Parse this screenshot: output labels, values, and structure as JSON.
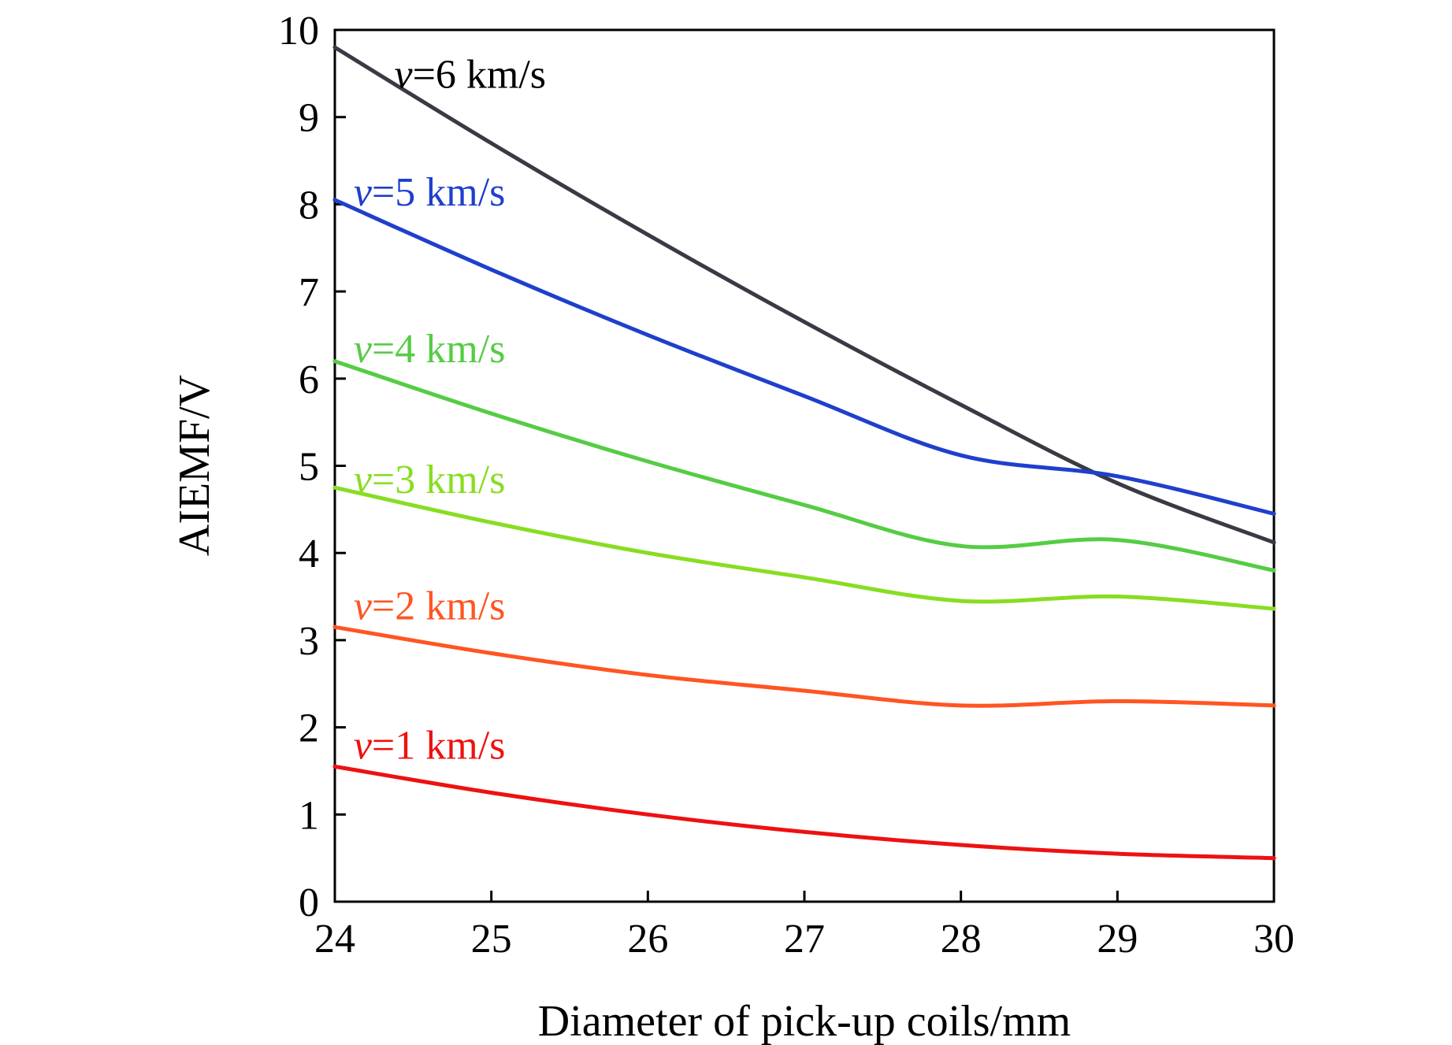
{
  "chart_data": {
    "type": "line",
    "title": "",
    "xlabel": "Diameter of pick-up coils/mm",
    "ylabel": "AIEMF/V",
    "xlim": [
      24,
      30
    ],
    "ylim": [
      0,
      10
    ],
    "xticks": [
      24,
      25,
      26,
      27,
      28,
      29,
      30
    ],
    "yticks": [
      0,
      1,
      2,
      3,
      4,
      5,
      6,
      7,
      8,
      9,
      10
    ],
    "grid": false,
    "legend": "inline labels near left end of each line",
    "x": [
      24,
      25,
      26,
      27,
      28,
      29,
      30
    ],
    "series": [
      {
        "name": "v=6 km/s",
        "label_prefix": "v",
        "label_suffix": "=6 km/s",
        "color": "#3a3a45",
        "label_color": "#000000",
        "label_at": [
          24.38,
          9.5
        ],
        "values": [
          9.8,
          8.7,
          7.65,
          6.65,
          5.7,
          4.8,
          4.12
        ]
      },
      {
        "name": "v=5 km/s",
        "label_prefix": "v",
        "label_suffix": "=5 km/s",
        "color": "#1f3fcc",
        "label_color": "#1f3fcc",
        "label_at": [
          24.12,
          8.15
        ],
        "values": [
          8.05,
          7.25,
          6.5,
          5.8,
          5.12,
          4.88,
          4.45
        ]
      },
      {
        "name": "v=4 km/s",
        "label_prefix": "v",
        "label_suffix": "=4 km/s",
        "color": "#55cc44",
        "label_color": "#55cc44",
        "label_at": [
          24.12,
          6.35
        ],
        "values": [
          6.2,
          5.6,
          5.05,
          4.55,
          4.08,
          4.15,
          3.8
        ]
      },
      {
        "name": "v=3 km/s",
        "label_prefix": "v",
        "label_suffix": "=3 km/s",
        "color": "#88dd22",
        "label_color": "#88dd22",
        "label_at": [
          24.12,
          4.85
        ],
        "values": [
          4.75,
          4.35,
          4.0,
          3.72,
          3.45,
          3.5,
          3.36
        ]
      },
      {
        "name": "v=2 km/s",
        "label_prefix": "v",
        "label_suffix": "=2 km/s",
        "color": "#ff5522",
        "label_color": "#ff5522",
        "label_at": [
          24.12,
          3.4
        ],
        "values": [
          3.15,
          2.85,
          2.6,
          2.42,
          2.25,
          2.3,
          2.25
        ]
      },
      {
        "name": "v=1 km/s",
        "label_prefix": "v",
        "label_suffix": "=1 km/s",
        "color": "#ee1111",
        "label_color": "#ee1111",
        "label_at": [
          24.12,
          1.8
        ],
        "values": [
          1.55,
          1.25,
          1.0,
          0.8,
          0.65,
          0.55,
          0.5
        ]
      }
    ]
  }
}
